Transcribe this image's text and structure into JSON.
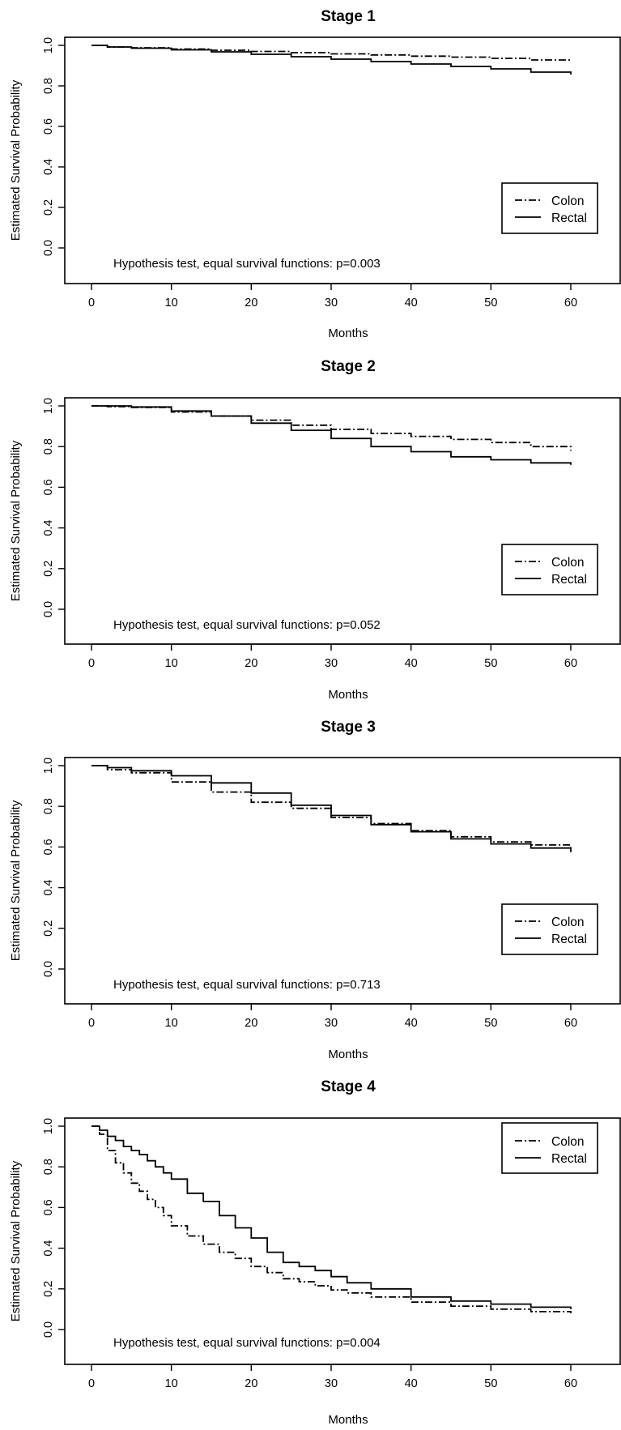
{
  "chart_data": [
    {
      "type": "line",
      "title": "Stage 1",
      "xlabel": "Months",
      "ylabel": "Estimated Survival Probability",
      "xlim": [
        0,
        60
      ],
      "ylim": [
        0,
        1
      ],
      "xticks": [
        "0",
        "10",
        "20",
        "30",
        "40",
        "50",
        "60"
      ],
      "yticks": [
        "0.0",
        "0.2",
        "0.4",
        "0.6",
        "0.8",
        "1.0"
      ],
      "legend_position": "middle-right",
      "annotation": "Hypothesis test, equal survival functions: p=0.003",
      "series": [
        {
          "name": "Colon",
          "line": "dashdot",
          "x": [
            0,
            2,
            5,
            10,
            15,
            20,
            25,
            30,
            35,
            40,
            45,
            50,
            55,
            60
          ],
          "y": [
            1.0,
            0.992,
            0.988,
            0.982,
            0.976,
            0.97,
            0.964,
            0.958,
            0.953,
            0.947,
            0.942,
            0.936,
            0.928,
            0.92
          ]
        },
        {
          "name": "Rectal",
          "line": "solid",
          "x": [
            0,
            2,
            5,
            10,
            15,
            20,
            25,
            30,
            35,
            40,
            45,
            50,
            55,
            60
          ],
          "y": [
            1.0,
            0.992,
            0.986,
            0.978,
            0.968,
            0.956,
            0.944,
            0.932,
            0.92,
            0.908,
            0.896,
            0.884,
            0.868,
            0.856
          ]
        }
      ]
    },
    {
      "type": "line",
      "title": "Stage 2",
      "xlabel": "Months",
      "ylabel": "Estimated Survival Probability",
      "xlim": [
        0,
        60
      ],
      "ylim": [
        0,
        1
      ],
      "xticks": [
        "0",
        "10",
        "20",
        "30",
        "40",
        "50",
        "60"
      ],
      "yticks": [
        "0.0",
        "0.2",
        "0.4",
        "0.6",
        "0.8",
        "1.0"
      ],
      "legend_position": "middle-right",
      "annotation": "Hypothesis test, equal survival functions: p=0.052",
      "series": [
        {
          "name": "Colon",
          "line": "dashdot",
          "x": [
            0,
            2,
            5,
            10,
            15,
            20,
            25,
            30,
            35,
            40,
            45,
            50,
            55,
            60
          ],
          "y": [
            1.0,
            0.997,
            0.993,
            0.97,
            0.95,
            0.93,
            0.905,
            0.885,
            0.865,
            0.85,
            0.835,
            0.82,
            0.8,
            0.78
          ]
        },
        {
          "name": "Rectal",
          "line": "solid",
          "x": [
            0,
            2,
            5,
            10,
            15,
            20,
            25,
            30,
            35,
            40,
            45,
            50,
            55,
            60
          ],
          "y": [
            1.0,
            1.0,
            0.995,
            0.975,
            0.95,
            0.915,
            0.88,
            0.84,
            0.8,
            0.775,
            0.75,
            0.735,
            0.72,
            0.71
          ]
        }
      ]
    },
    {
      "type": "line",
      "title": "Stage 3",
      "xlabel": "Months",
      "ylabel": "Estimated Survival Probability",
      "xlim": [
        0,
        60
      ],
      "ylim": [
        0,
        1
      ],
      "xticks": [
        "0",
        "10",
        "20",
        "30",
        "40",
        "50",
        "60"
      ],
      "yticks": [
        "0.0",
        "0.2",
        "0.4",
        "0.6",
        "0.8",
        "1.0"
      ],
      "legend_position": "middle-right",
      "annotation": "Hypothesis test, equal survival functions: p=0.713",
      "series": [
        {
          "name": "Colon",
          "line": "dashdot",
          "x": [
            0,
            2,
            5,
            10,
            15,
            20,
            25,
            30,
            35,
            40,
            45,
            50,
            55,
            60
          ],
          "y": [
            1.0,
            0.98,
            0.965,
            0.92,
            0.87,
            0.82,
            0.79,
            0.745,
            0.715,
            0.68,
            0.65,
            0.625,
            0.61,
            0.6
          ]
        },
        {
          "name": "Rectal",
          "line": "solid",
          "x": [
            0,
            2,
            5,
            10,
            15,
            20,
            25,
            30,
            35,
            40,
            45,
            50,
            55,
            60
          ],
          "y": [
            1.0,
            0.99,
            0.975,
            0.95,
            0.915,
            0.865,
            0.805,
            0.755,
            0.71,
            0.675,
            0.64,
            0.615,
            0.595,
            0.575
          ]
        }
      ]
    },
    {
      "type": "line",
      "title": "Stage 4",
      "xlabel": "Months",
      "ylabel": "Estimated Survival Probability",
      "xlim": [
        0,
        60
      ],
      "ylim": [
        0,
        1
      ],
      "xticks": [
        "0",
        "10",
        "20",
        "30",
        "40",
        "50",
        "60"
      ],
      "yticks": [
        "0.0",
        "0.2",
        "0.4",
        "0.6",
        "0.8",
        "1.0"
      ],
      "legend_position": "top-right",
      "annotation": "Hypothesis test, equal survival functions: p=0.004",
      "series": [
        {
          "name": "Colon",
          "line": "dashdot",
          "x": [
            0,
            1,
            2,
            3,
            4,
            5,
            6,
            7,
            8,
            9,
            10,
            12,
            14,
            16,
            18,
            20,
            22,
            24,
            26,
            28,
            30,
            32,
            35,
            40,
            45,
            50,
            55,
            60
          ],
          "y": [
            1.0,
            0.96,
            0.88,
            0.82,
            0.77,
            0.72,
            0.68,
            0.64,
            0.6,
            0.56,
            0.51,
            0.46,
            0.42,
            0.38,
            0.35,
            0.31,
            0.28,
            0.25,
            0.235,
            0.215,
            0.195,
            0.18,
            0.16,
            0.135,
            0.115,
            0.1,
            0.088,
            0.08
          ]
        },
        {
          "name": "Rectal",
          "line": "solid",
          "x": [
            0,
            1,
            2,
            3,
            4,
            5,
            6,
            7,
            8,
            9,
            10,
            12,
            14,
            16,
            18,
            20,
            22,
            24,
            26,
            28,
            30,
            32,
            35,
            40,
            45,
            50,
            55,
            60
          ],
          "y": [
            1.0,
            0.98,
            0.95,
            0.93,
            0.9,
            0.88,
            0.86,
            0.83,
            0.8,
            0.77,
            0.74,
            0.67,
            0.63,
            0.56,
            0.5,
            0.45,
            0.38,
            0.33,
            0.31,
            0.29,
            0.26,
            0.23,
            0.2,
            0.16,
            0.14,
            0.125,
            0.11,
            0.1
          ]
        }
      ]
    }
  ]
}
